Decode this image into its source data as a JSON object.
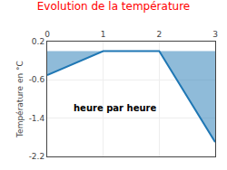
{
  "chart_data": {
    "type": "area",
    "title": "Evolution de la température",
    "xlabel": "heure par heure",
    "ylabel": "Température en °C",
    "x": [
      0,
      1,
      2,
      3
    ],
    "values": [
      -0.5,
      0.0,
      0.0,
      -1.9
    ],
    "xlim": [
      0,
      3
    ],
    "ylim": [
      -2.2,
      0.2
    ],
    "xticks": [
      0,
      1,
      2,
      3
    ],
    "yticks": [
      0.2,
      -0.6,
      -1.4,
      -2.2
    ],
    "grid": true
  }
}
